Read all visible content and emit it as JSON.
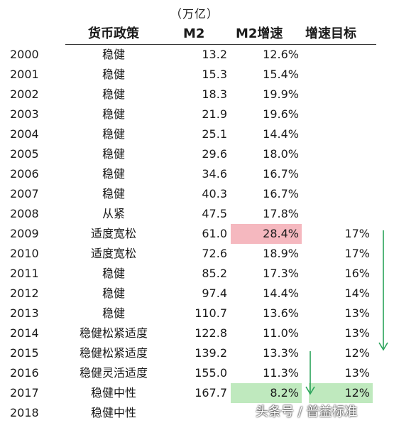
{
  "unit_label": "（万亿）",
  "columns": {
    "policy": "货币政策",
    "m2": "M2",
    "growth": "M2增速",
    "target": "增速目标"
  },
  "rows": [
    {
      "year": "2000",
      "policy": "稳健",
      "m2": "13.2",
      "growth": "12.6%",
      "target": ""
    },
    {
      "year": "2001",
      "policy": "稳健",
      "m2": "15.3",
      "growth": "15.4%",
      "target": ""
    },
    {
      "year": "2002",
      "policy": "稳健",
      "m2": "18.3",
      "growth": "19.9%",
      "target": ""
    },
    {
      "year": "2003",
      "policy": "稳健",
      "m2": "21.9",
      "growth": "19.6%",
      "target": ""
    },
    {
      "year": "2004",
      "policy": "稳健",
      "m2": "25.1",
      "growth": "14.4%",
      "target": ""
    },
    {
      "year": "2005",
      "policy": "稳健",
      "m2": "29.6",
      "growth": "18.0%",
      "target": ""
    },
    {
      "year": "2006",
      "policy": "稳健",
      "m2": "34.6",
      "growth": "16.7%",
      "target": ""
    },
    {
      "year": "2007",
      "policy": "稳健",
      "m2": "40.3",
      "growth": "16.7%",
      "target": ""
    },
    {
      "year": "2008",
      "policy": "从紧",
      "m2": "47.5",
      "growth": "17.8%",
      "target": ""
    },
    {
      "year": "2009",
      "policy": "适度宽松",
      "m2": "61.0",
      "growth": "28.4%",
      "target": "17%"
    },
    {
      "year": "2010",
      "policy": "适度宽松",
      "m2": "72.6",
      "growth": "18.9%",
      "target": "17%"
    },
    {
      "year": "2011",
      "policy": "稳健",
      "m2": "85.2",
      "growth": "17.3%",
      "target": "16%"
    },
    {
      "year": "2012",
      "policy": "稳健",
      "m2": "97.4",
      "growth": "14.4%",
      "target": "14%"
    },
    {
      "year": "2013",
      "policy": "稳健",
      "m2": "110.7",
      "growth": "13.6%",
      "target": "13%"
    },
    {
      "year": "2014",
      "policy": "稳健松紧适度",
      "m2": "122.8",
      "growth": "11.0%",
      "target": "13%"
    },
    {
      "year": "2015",
      "policy": "稳健松紧适度",
      "m2": "139.2",
      "growth": "13.3%",
      "target": "12%"
    },
    {
      "year": "2016",
      "policy": "稳健灵活适度",
      "m2": "155.0",
      "growth": "11.3%",
      "target": "13%"
    },
    {
      "year": "2017",
      "policy": "稳健中性",
      "m2": "167.7",
      "growth": "8.2%",
      "target": "12%"
    },
    {
      "year": "2018",
      "policy": "稳健中性",
      "m2": "",
      "growth": "",
      "target": ""
    }
  ],
  "highlights": {
    "red": "#f5b8bf",
    "green": "#bfe9be",
    "arrow": "#2aa35a"
  },
  "watermark": "头条号 / 普益标准"
}
